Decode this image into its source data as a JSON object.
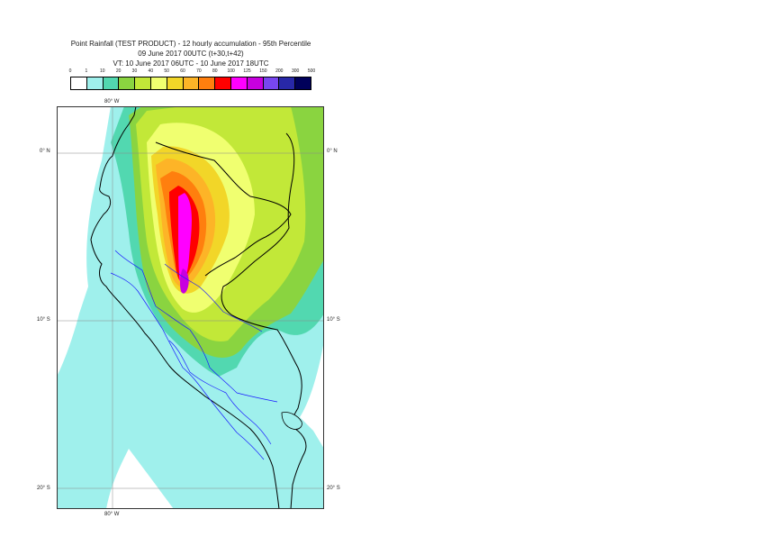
{
  "title": {
    "line1": "Point Rainfall (TEST PRODUCT) - 12 hourly accumulation - 95th Percentile",
    "line2": "09 June 2017 00UTC (t+30,t+42)",
    "line3": "VT: 10 June 2017 06UTC - 10 June 2017 18UTC"
  },
  "legend": {
    "labels": [
      "0",
      "1",
      "10",
      "20",
      "30",
      "40",
      "50",
      "60",
      "70",
      "80",
      "100",
      "125",
      "150",
      "200",
      "300",
      "500"
    ],
    "colors": [
      "#ffffff",
      "#9ff0ec",
      "#52d8b0",
      "#8ad440",
      "#c2e838",
      "#f0ff70",
      "#f2d628",
      "#fdb427",
      "#ff7f0e",
      "#ff0000",
      "#ff00ff",
      "#c800e0",
      "#7846f0",
      "#2828a8",
      "#00005a"
    ]
  },
  "axes": {
    "lon_top": "80° W",
    "lon_bottom": "80° W",
    "lat_right_0": "0° N",
    "lat_right_10": "10° S",
    "lat_right_20": "20° S",
    "lat_left_0": "0° N",
    "lat_left_10": "10° S",
    "lat_left_20": "20° S"
  }
}
